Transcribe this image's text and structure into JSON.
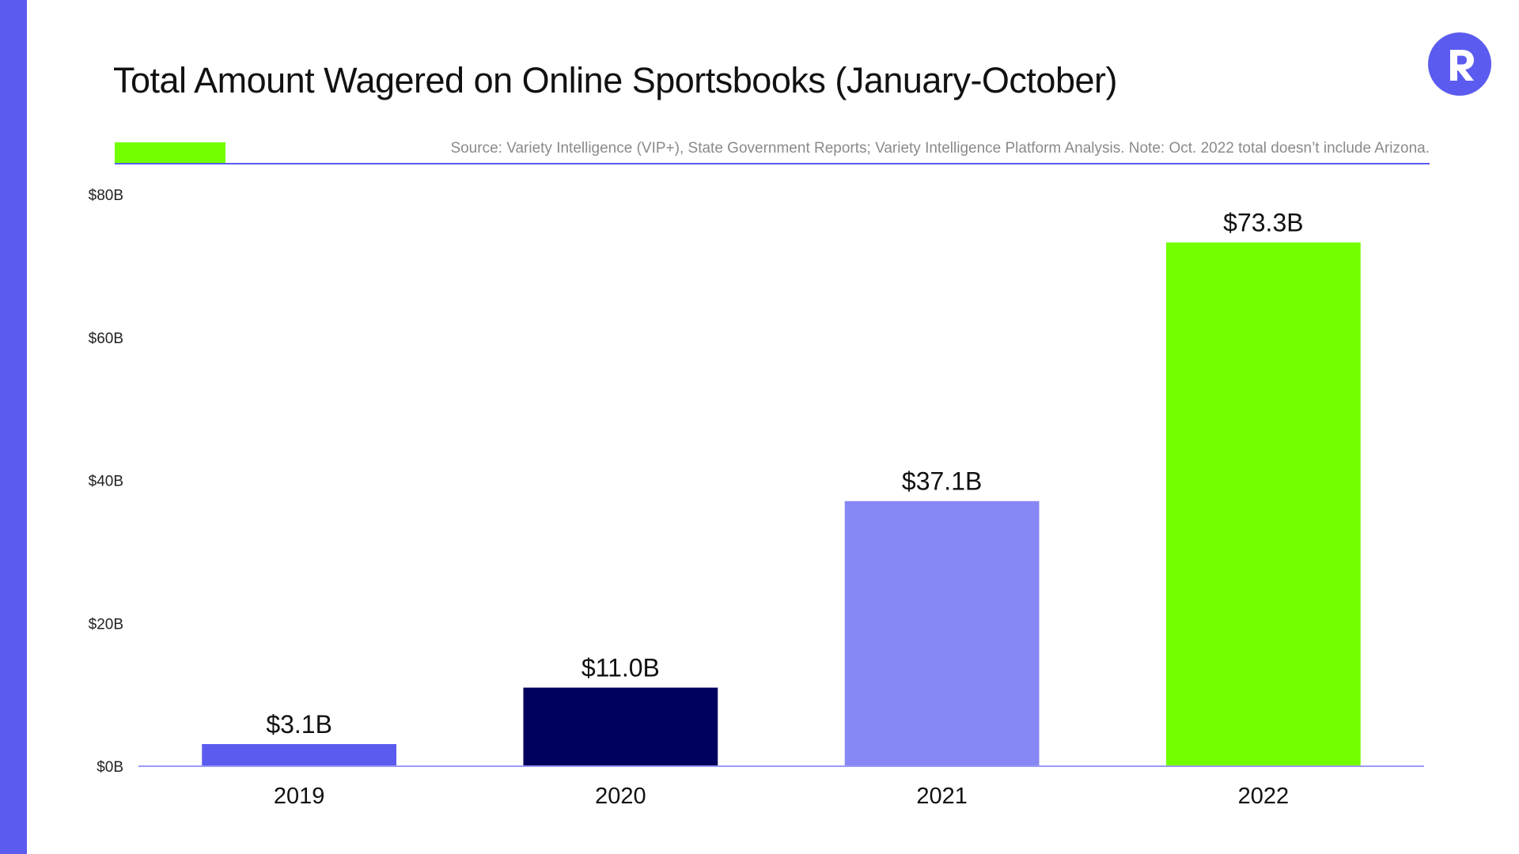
{
  "chart_data": {
    "type": "bar",
    "title": "Total Amount Wagered on Online Sportsbooks (January-October)",
    "source": "Source: Variety Intelligence (VIP+), State Government Reports; Variety Intelligence Platform Analysis. Note: Oct. 2022 total doesn’t include Arizona.",
    "categories": [
      "2019",
      "2020",
      "2021",
      "2022"
    ],
    "values": [
      3.1,
      11.0,
      37.1,
      73.3
    ],
    "data_labels": [
      "$3.1B",
      "$11.0B",
      "$37.1B",
      "$73.3B"
    ],
    "bar_colors": [
      "#5b5bf0",
      "#00005e",
      "#8787f5",
      "#73ff00"
    ],
    "ylim": [
      0,
      80
    ],
    "yticks": [
      0,
      20,
      40,
      60,
      80
    ],
    "ytick_labels": [
      "$0B",
      "$20B",
      "$40B",
      "$60B",
      "$80B"
    ],
    "xlabel": "",
    "ylabel": "",
    "grid": false,
    "legend": "none"
  },
  "brand": {
    "accent_color": "#73ff00",
    "stripe_color": "#5b5bf0",
    "logo_icon": "r-logo-icon"
  }
}
